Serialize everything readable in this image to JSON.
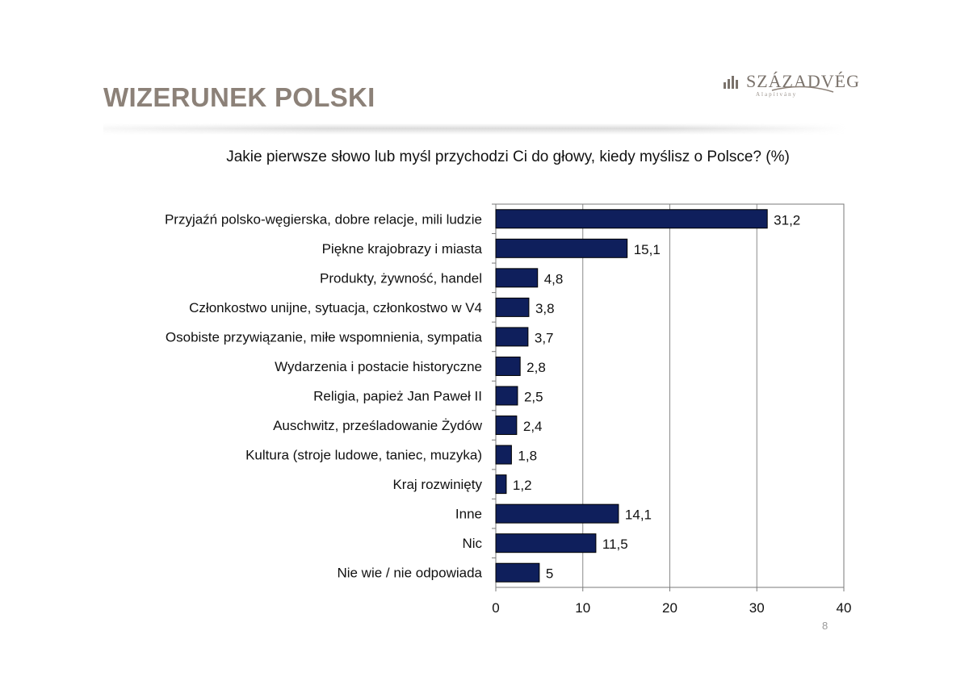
{
  "slide": {
    "title": "WIZERUNEK POLSKI",
    "page_number": "8"
  },
  "logo": {
    "name": "SZÁZADVÉG",
    "subtitle": "Alapítvány",
    "icon": "bar-columns-icon",
    "color": "#7a726b"
  },
  "chart_data": {
    "type": "bar",
    "orientation": "horizontal",
    "title": "Jakie pierwsze słowo lub myśl przychodzi Ci do głowy, kiedy myślisz o Polsce? (%)",
    "categories": [
      "Przyjaźń polsko-węgierska, dobre relacje, mili ludzie",
      "Piękne krajobrazy i miasta",
      "Produkty, żywność, handel",
      "Członkostwo unijne, sytuacja, członkostwo w V4",
      "Osobiste przywiązanie, miłe wspomnienia, sympatia",
      "Wydarzenia i postacie historyczne",
      "Religia, papież Jan Paweł II",
      "Auschwitz, prześladowanie Żydów",
      "Kultura (stroje ludowe, taniec, muzyka)",
      "Kraj rozwinięty",
      "Inne",
      "Nic",
      "Nie wie / nie odpowiada"
    ],
    "values": [
      31.2,
      15.1,
      4.8,
      3.8,
      3.7,
      2.8,
      2.5,
      2.4,
      1.8,
      1.2,
      14.1,
      11.5,
      5
    ],
    "value_labels": [
      "31,2",
      "15,1",
      "4,8",
      "3,8",
      "3,7",
      "2,8",
      "2,5",
      "2,4",
      "1,8",
      "1,2",
      "14,1",
      "11,5",
      "5"
    ],
    "xlim": [
      0,
      40
    ],
    "xticks": [
      0,
      10,
      20,
      30,
      40
    ],
    "xlabel": "",
    "ylabel": "",
    "grid": true,
    "legend": "none",
    "bar_color": "#0f1f5c"
  }
}
